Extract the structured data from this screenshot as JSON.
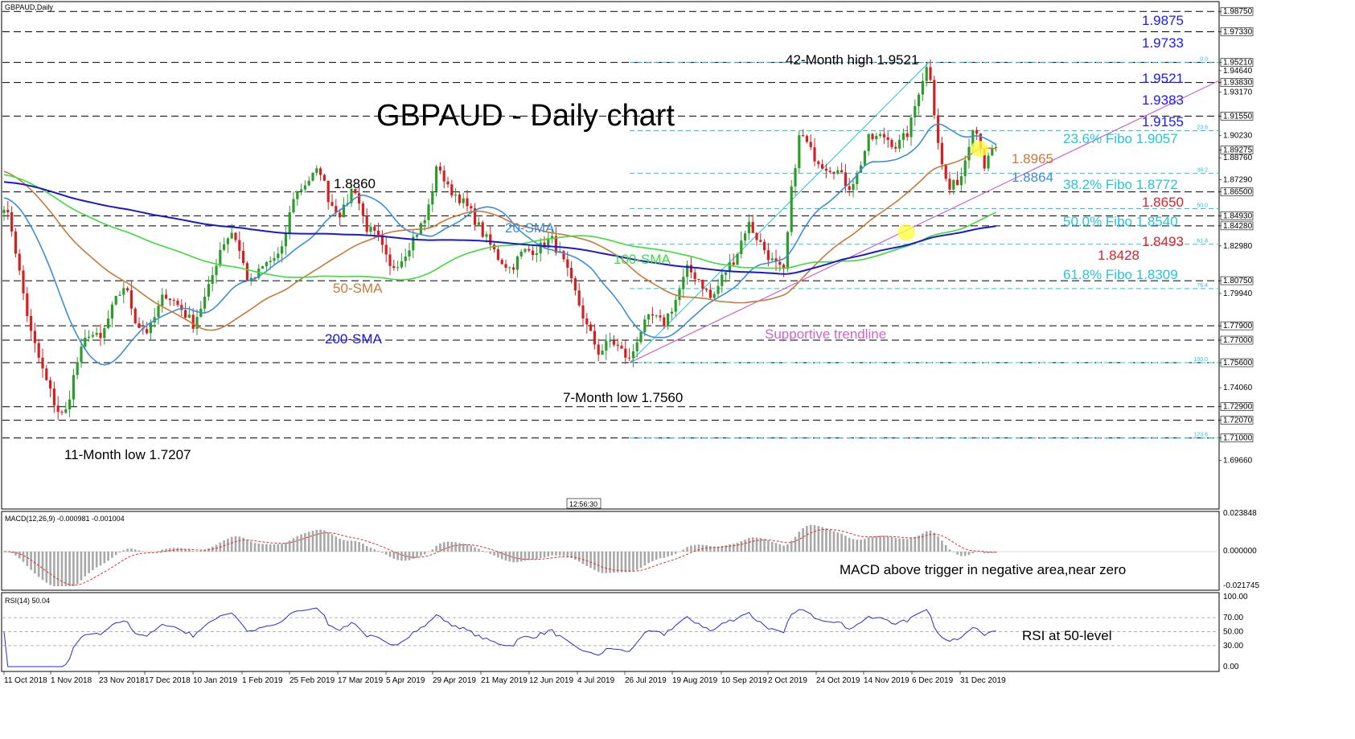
{
  "chart_data": [
    {
      "type": "candlestick",
      "symbol_label": "GBPAUD,Daily",
      "title": "GBPAUD - Daily chart",
      "price_range": [
        1.681,
        1.9875
      ],
      "x_labels": [
        "11 Oct 2018",
        "1 Nov 2018",
        "23 Nov 2018",
        "17 Dec 2018",
        "10 Jan 2019",
        "1 Feb 2019",
        "25 Feb 2019",
        "17 Mar 2019",
        "5 Apr 2019",
        "29 Apr 2019",
        "21 May 2019",
        "12 Jun 2019",
        "4 Jul 2019",
        "26 Jul 2019",
        "19 Aug 2019",
        "10 Sep 2019",
        "2 Oct 2019",
        "24 Oct 2019",
        "14 Nov 2019",
        "6 Dec 2019",
        "31 Dec 2019"
      ],
      "axis_ticks": [
        "1.98750",
        "1.97330",
        "1.95210",
        "1.94640",
        "1.93830",
        "1.93170",
        "1.91550",
        "1.90230",
        "1.89275",
        "1.88760",
        "1.87290",
        "1.86500",
        "1.84930",
        "1.84280",
        "1.82980",
        "1.80750",
        "1.79940",
        "1.77900",
        "1.77000",
        "1.75600",
        "1.74060",
        "1.72900",
        "1.72070",
        "1.71000",
        "1.69660"
      ],
      "current_price": "1.89275",
      "cursor_time": "12:56:30",
      "horizontal_levels": [
        {
          "value": 1.9875,
          "label": "1.9875",
          "color": "#1a1aff"
        },
        {
          "value": 1.9733,
          "label": "1.9733",
          "color": "#1a1aff"
        },
        {
          "value": 1.9521,
          "label": "1.9521",
          "color": "#1a1aff"
        },
        {
          "value": 1.9383,
          "label": "1.9383",
          "color": "#1a1aff"
        },
        {
          "value": 1.9155,
          "label": "1.9155",
          "color": "#1a1aff"
        },
        {
          "value": 1.865,
          "label": "1.8650",
          "color": "#e0202a"
        },
        {
          "value": 1.8493,
          "label": "1.8493",
          "color": "#e0202a"
        },
        {
          "value": 1.8428,
          "label": "1.8428",
          "color": "#e0202a"
        },
        {
          "value": 1.8075,
          "label": "",
          "color": ""
        },
        {
          "value": 1.779,
          "label": "",
          "color": ""
        },
        {
          "value": 1.77,
          "label": "",
          "color": ""
        },
        {
          "value": 1.756,
          "label": "",
          "color": ""
        },
        {
          "value": 1.729,
          "label": "",
          "color": ""
        },
        {
          "value": 1.7207,
          "label": "",
          "color": ""
        },
        {
          "value": 1.71,
          "label": "",
          "color": ""
        }
      ],
      "fibonacci": {
        "levels": [
          {
            "ratio": "0.0",
            "value": 1.9521
          },
          {
            "ratio": "23.6",
            "value": 1.9057
          },
          {
            "ratio": "38.2",
            "value": 1.8772
          },
          {
            "ratio": "50.0",
            "value": 1.854
          },
          {
            "ratio": "61.8",
            "value": 1.8309
          },
          {
            "ratio": "76.4",
            "value": 1.8025
          },
          {
            "ratio": "100.0",
            "value": 1.756
          },
          {
            "ratio": "123.6",
            "value": 1.71
          }
        ],
        "labels": [
          "23.6% Fibo 1.9057",
          "38.2% Fibo 1.8772",
          "50.0% Fibo 1.8540",
          "61.8% Fibo 1.8309"
        ],
        "color": "#26c4d8"
      },
      "moving_averages": [
        {
          "name": "20-SMA",
          "color": "#3a8fdc"
        },
        {
          "name": "50-SMA",
          "color": "#c87a3a"
        },
        {
          "name": "100-SMA",
          "color": "#3ddc3a"
        },
        {
          "name": "200-SMA",
          "color": "#1a1acc"
        }
      ],
      "ma_value_labels": [
        {
          "text": "1.8965",
          "color": "#c87a3a"
        },
        {
          "text": "1.8864",
          "color": "#3a8fdc"
        }
      ],
      "annotations": {
        "high42": "42-Month high 1.9521",
        "low11": "11-Month low 1.7207",
        "low7": "7-Month low 1.7560",
        "peak1": "1.8860",
        "trendline": "Supportive trendline",
        "trendline_color": "#cc66cc"
      },
      "bull_color": "#2c9c2c",
      "bear_color": "#d42020"
    },
    {
      "type": "histogram",
      "indicator_label": "MACD(12,26,9) -0.000981 -0.001004",
      "axis_ticks": [
        "0.023848",
        "0.000000",
        "-0.021745"
      ],
      "annotation": "MACD above trigger in negative area,near zero",
      "histogram_color": "#a8a8a8",
      "signal_color": "#e03030"
    },
    {
      "type": "line",
      "indicator_label": "RSI(14) 50.04",
      "ylim": [
        0,
        100
      ],
      "levels": [
        70,
        50,
        30
      ],
      "axis_ticks": [
        "100.00",
        "70.00",
        "50.00",
        "30.00",
        "0.00"
      ],
      "annotation": "RSI at 50-level",
      "line_color": "#2a2ad8"
    }
  ]
}
